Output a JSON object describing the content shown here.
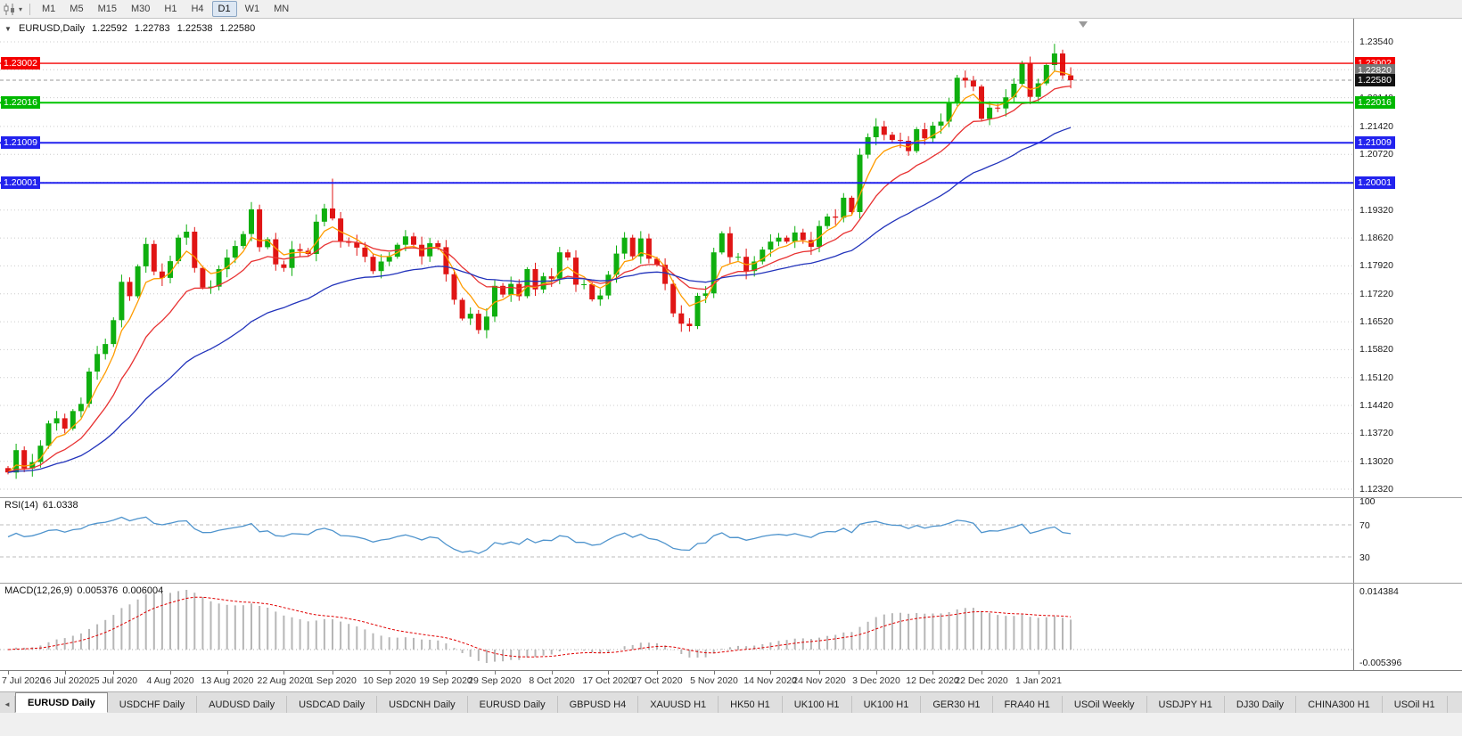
{
  "toolbar": {
    "timeframes": [
      {
        "label": "M1",
        "active": false
      },
      {
        "label": "M5",
        "active": false
      },
      {
        "label": "M15",
        "active": false
      },
      {
        "label": "M30",
        "active": false
      },
      {
        "label": "H1",
        "active": false
      },
      {
        "label": "H4",
        "active": false
      },
      {
        "label": "D1",
        "active": true
      },
      {
        "label": "W1",
        "active": false
      },
      {
        "label": "MN",
        "active": false
      }
    ],
    "caret_icon": "▾"
  },
  "chart": {
    "header": {
      "collapse_icon": "▼",
      "symbol": "EURUSD,Daily",
      "open": "1.22592",
      "high": "1.22783",
      "low": "1.22538",
      "close": "1.22580"
    }
  },
  "chart_data": {
    "type": "candlestick",
    "symbol": "EURUSD",
    "timeframe": "Daily",
    "first_open": 1.1285,
    "closes": [
      1.1274,
      1.133,
      1.1284,
      1.13,
      1.1341,
      1.1397,
      1.141,
      1.1384,
      1.1428,
      1.1446,
      1.1527,
      1.1571,
      1.1596,
      1.1656,
      1.1752,
      1.1716,
      1.1791,
      1.1847,
      1.1778,
      1.1762,
      1.1804,
      1.1863,
      1.1878,
      1.1787,
      1.1738,
      1.174,
      1.1784,
      1.1813,
      1.1842,
      1.1872,
      1.1934,
      1.1839,
      1.1859,
      1.1796,
      1.1787,
      1.1834,
      1.183,
      1.1822,
      1.1903,
      1.1936,
      1.1911,
      1.1854,
      1.185,
      1.1838,
      1.1815,
      1.1779,
      1.1803,
      1.1815,
      1.1845,
      1.1866,
      1.1845,
      1.1816,
      1.1849,
      1.1839,
      1.1771,
      1.1707,
      1.166,
      1.1672,
      1.1631,
      1.1665,
      1.1742,
      1.172,
      1.1747,
      1.1716,
      1.1784,
      1.1733,
      1.1766,
      1.176,
      1.1826,
      1.1813,
      1.1745,
      1.1746,
      1.1708,
      1.1718,
      1.177,
      1.1823,
      1.1863,
      1.1816,
      1.1861,
      1.181,
      1.1795,
      1.1747,
      1.1673,
      1.1647,
      1.1641,
      1.1717,
      1.1723,
      1.1826,
      1.1874,
      1.1814,
      1.1815,
      1.1779,
      1.1803,
      1.1833,
      1.1853,
      1.1863,
      1.1853,
      1.1876,
      1.1857,
      1.184,
      1.1892,
      1.1916,
      1.1913,
      1.1963,
      1.1927,
      1.2071,
      1.2115,
      1.2142,
      1.2121,
      1.2108,
      1.2106,
      1.208,
      1.2135,
      1.2112,
      1.2144,
      1.2154,
      1.22,
      1.2264,
      1.2257,
      1.2242,
      1.2161,
      1.2189,
      1.2187,
      1.2215,
      1.2249,
      1.2299,
      1.2216,
      1.225,
      1.2296,
      1.2325,
      1.227,
      1.2258
    ],
    "wick_overrides": {
      "40": {
        "h": 1.2011
      },
      "129": {
        "h": 1.2349
      }
    },
    "up_color": "#0faf0f",
    "down_color": "#e01515",
    "current_price": 1.2258,
    "y_axis": {
      "top_price": 1.2354,
      "bottom_price": 1.1232,
      "ticks": [
        {
          "t": "1.23540",
          "p": 1.2354
        },
        {
          "t": "1.22140",
          "p": 1.2214
        },
        {
          "t": "1.21420",
          "p": 1.2142
        },
        {
          "t": "1.20720",
          "p": 1.2072
        },
        {
          "t": "1.19320",
          "p": 1.1932
        },
        {
          "t": "1.18620",
          "p": 1.1862
        },
        {
          "t": "1.17920",
          "p": 1.1792
        },
        {
          "t": "1.17220",
          "p": 1.1722
        },
        {
          "t": "1.16520",
          "p": 1.1652
        },
        {
          "t": "1.15820",
          "p": 1.1582
        },
        {
          "t": "1.15120",
          "p": 1.1512
        },
        {
          "t": "1.14420",
          "p": 1.1442
        },
        {
          "t": "1.13720",
          "p": 1.1372
        },
        {
          "t": "1.13020",
          "p": 1.1302
        },
        {
          "t": "1.12320",
          "p": 1.1232
        }
      ],
      "grid_extra": [
        1.2284,
        1.2002
      ]
    },
    "x_labels": [
      {
        "i": 0,
        "t": "7 Jul 2020"
      },
      {
        "i": 7,
        "t": "16 Jul 2020"
      },
      {
        "i": 13,
        "t": "25 Jul 2020"
      },
      {
        "i": 20,
        "t": "4 Aug 2020"
      },
      {
        "i": 27,
        "t": "13 Aug 2020"
      },
      {
        "i": 34,
        "t": "22 Aug 2020"
      },
      {
        "i": 40,
        "t": "1 Sep 2020"
      },
      {
        "i": 47,
        "t": "10 Sep 2020"
      },
      {
        "i": 54,
        "t": "19 Sep 2020"
      },
      {
        "i": 60,
        "t": "29 Sep 2020"
      },
      {
        "i": 67,
        "t": "8 Oct 2020"
      },
      {
        "i": 74,
        "t": "17 Oct 2020"
      },
      {
        "i": 80,
        "t": "27 Oct 2020"
      },
      {
        "i": 87,
        "t": "5 Nov 2020"
      },
      {
        "i": 94,
        "t": "14 Nov 2020"
      },
      {
        "i": 100,
        "t": "24 Nov 2020"
      },
      {
        "i": 107,
        "t": "3 Dec 2020"
      },
      {
        "i": 114,
        "t": "12 Dec 2020"
      },
      {
        "i": 120,
        "t": "22 Dec 2020"
      },
      {
        "i": 127,
        "t": "1 Jan 2021"
      }
    ],
    "moving_averages": [
      {
        "period": 5,
        "color": "#ff9c00"
      },
      {
        "period": 13,
        "color": "#e83232"
      },
      {
        "period": 34,
        "color": "#2233bb"
      }
    ],
    "hlines": [
      {
        "p": 1.23002,
        "label": "1.23002",
        "color": "#f40000",
        "w": 1.4
      },
      {
        "p": 1.22016,
        "label": "1.22016",
        "color": "#00c400",
        "w": 2
      },
      {
        "p": 1.21009,
        "label": "1.21009",
        "color": "#2222ee",
        "w": 2
      },
      {
        "p": 1.20001,
        "label": "1.20001",
        "color": "#2222ee",
        "w": 2
      }
    ],
    "price_boxes": [
      {
        "v": "1.23002",
        "bg": "#f40000",
        "p": 1.23002
      },
      {
        "v": "1.22820",
        "bg": "#777777",
        "p": 1.2282
      },
      {
        "v": "1.22580",
        "bg": "#111111",
        "p": 1.2258
      },
      {
        "v": "1.22016",
        "bg": "#00b800",
        "p": 1.22016
      },
      {
        "v": "1.21009",
        "bg": "#2222ee",
        "p": 1.21009
      },
      {
        "v": "1.20001",
        "bg": "#2222ee",
        "p": 1.20001
      }
    ],
    "left_boxes": [
      {
        "v": "1.23002",
        "bg": "#f40000",
        "p": 1.23002
      },
      {
        "v": "1.22016",
        "bg": "#00b800",
        "p": 1.22016
      },
      {
        "v": "1.21009",
        "bg": "#2222ee",
        "p": 1.21009
      },
      {
        "v": "1.20001",
        "bg": "#2222ee",
        "p": 1.20001
      }
    ],
    "rsi": {
      "label": "RSI(14)",
      "value": "61.0338",
      "period": 14,
      "levels": [
        100,
        70,
        30
      ],
      "line_color": "#4f94cd",
      "level_color": "#bcbcbc"
    },
    "macd": {
      "label": "MACD(12,26,9)",
      "main_value": "0.005376",
      "signal_value": "0.006004",
      "fast": 12,
      "slow": 26,
      "signal": 9,
      "axis_top": "0.014384",
      "axis_bottom": "-0.005396",
      "hist_color": "#b6b6b6",
      "signal_color": "#e00000"
    }
  },
  "tabs": {
    "scroll_left_icon": "◄",
    "items": [
      {
        "label": "EURUSD Daily",
        "active": true
      },
      {
        "label": "USDCHF Daily",
        "active": false
      },
      {
        "label": "AUDUSD Daily",
        "active": false
      },
      {
        "label": "USDCAD Daily",
        "active": false
      },
      {
        "label": "USDCNH Daily",
        "active": false
      },
      {
        "label": "EURUSD Daily",
        "active": false
      },
      {
        "label": "GBPUSD H4",
        "active": false
      },
      {
        "label": "XAUUSD H1",
        "active": false
      },
      {
        "label": "HK50 H1",
        "active": false
      },
      {
        "label": "UK100 H1",
        "active": false
      },
      {
        "label": "UK100 H1",
        "active": false
      },
      {
        "label": "GER30 H1",
        "active": false
      },
      {
        "label": "FRA40 H1",
        "active": false
      },
      {
        "label": "USOil Weekly",
        "active": false
      },
      {
        "label": "USDJPY H1",
        "active": false
      },
      {
        "label": "DJ30 Daily",
        "active": false
      },
      {
        "label": "CHINA300 H1",
        "active": false
      },
      {
        "label": "USOil H1",
        "active": false
      }
    ]
  }
}
